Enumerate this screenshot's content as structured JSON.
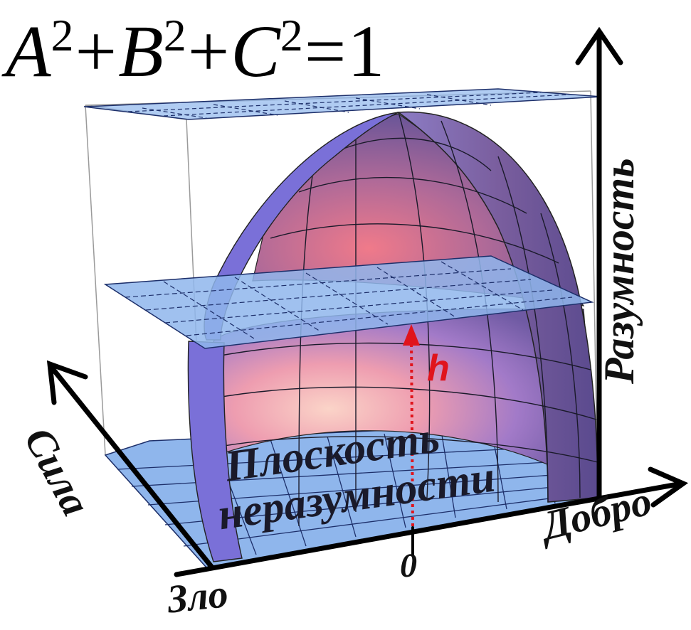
{
  "equation": {
    "A": "A",
    "B": "B",
    "C": "C",
    "exp": "2",
    "plus": "+",
    "equals": "=",
    "rhs": "1"
  },
  "axes": {
    "vertical": "Разумность",
    "left": "Сила",
    "right": "Добро",
    "origin_end": "Зло",
    "zero": "0"
  },
  "height_marker": "h",
  "plane_label": {
    "line1": "Плоскость",
    "line2": "неразумности"
  },
  "colors": {
    "plane_fill": "#8fb6ec",
    "plane_grid": "#1d2f6a",
    "dome_outer": "#6f5aa3",
    "dome_inner_warm": "#f2a0a8",
    "dome_rim": "#7a70d8",
    "height_arrow": "#e0141c",
    "axis": "#000000"
  }
}
